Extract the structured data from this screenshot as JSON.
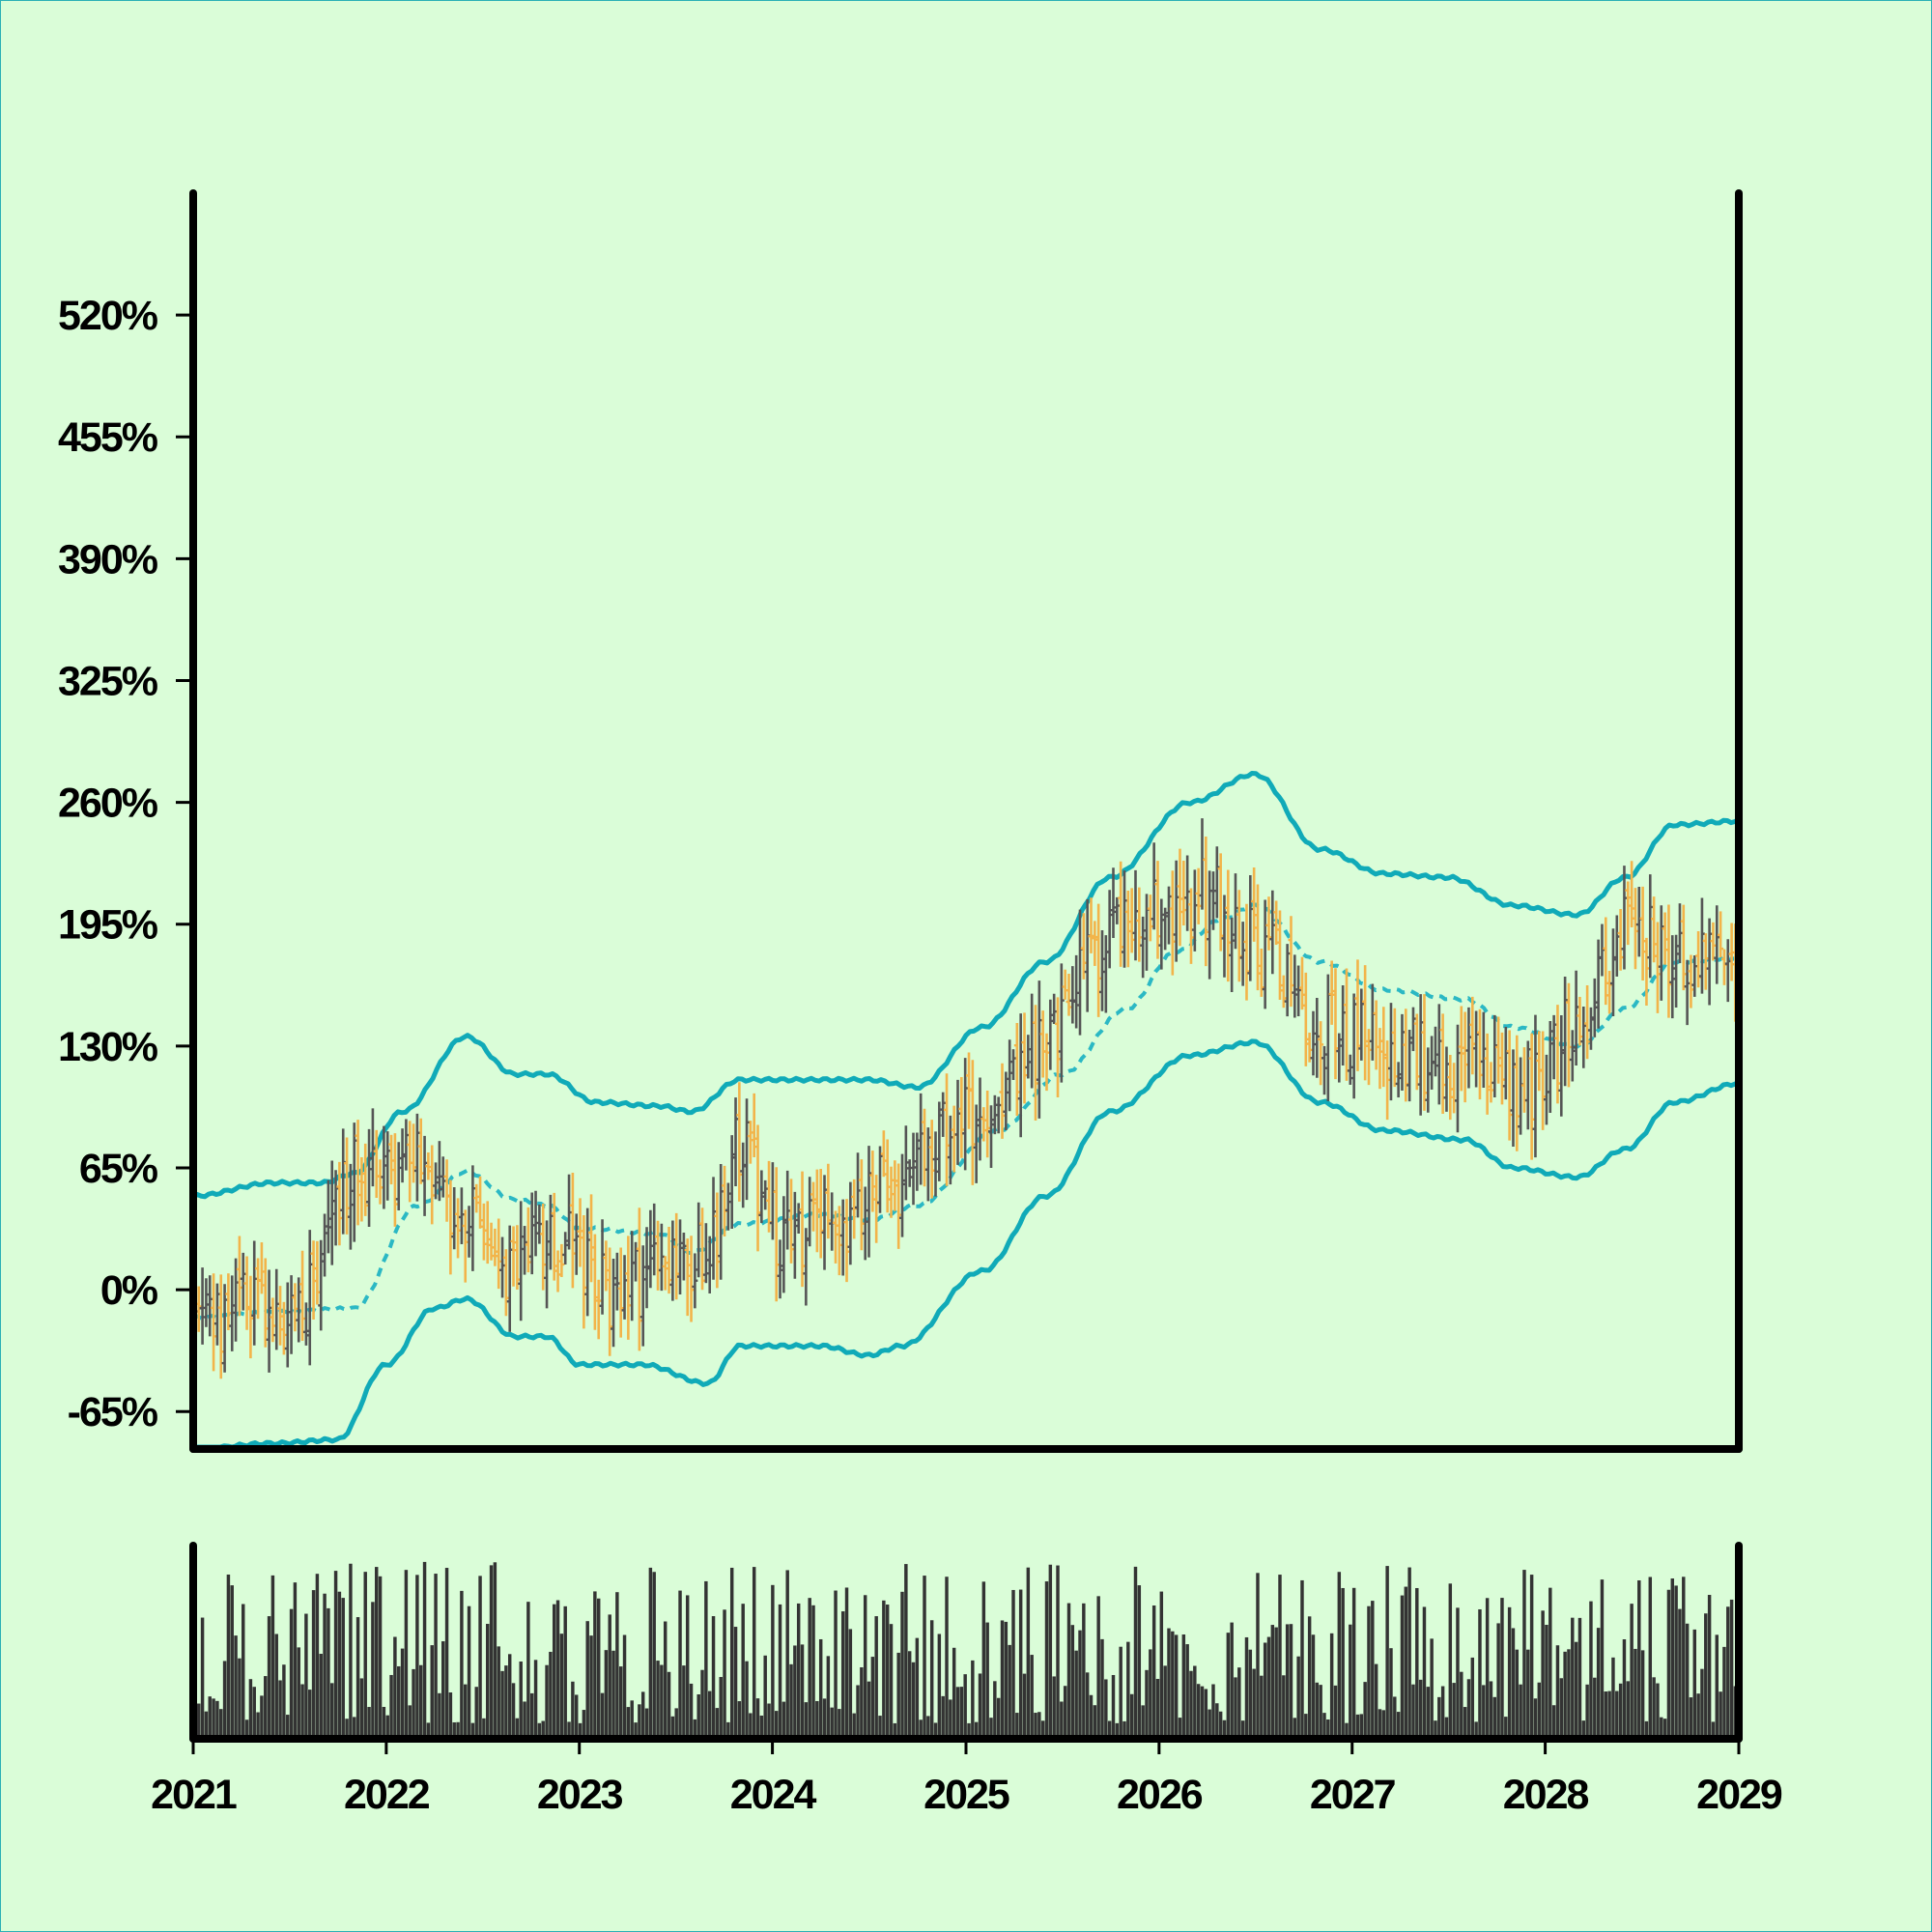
{
  "colors": {
    "background": "#dafdd8",
    "up_bar": "#555555",
    "down_bar": "#f2b44a",
    "band": "#10aab8",
    "mid_line": "#2bb8c4",
    "volume": "#333333",
    "axis": "#000000"
  },
  "chart_data": [
    {
      "type": "ohlc",
      "title": "",
      "xlabel": "",
      "ylabel": "",
      "xlim": [
        "2021-01-01",
        "2029-01-01"
      ],
      "ylim": [
        -85,
        585
      ],
      "y_ticks": [
        -65,
        0,
        65,
        130,
        195,
        260,
        325,
        390,
        455,
        520
      ],
      "y_tick_labels": [
        "-65%",
        "0%",
        "65%",
        "130%",
        "195%",
        "260%",
        "325%",
        "390%",
        "455%",
        "520%"
      ],
      "x_ticks": [
        "2021",
        "2022",
        "2023",
        "2024",
        "2025",
        "2026",
        "2027",
        "2028",
        "2029"
      ],
      "close_anchors": {
        "x": [
          "2021-01-01",
          "2021-04-01",
          "2021-07-01",
          "2021-11-01",
          "2022-03-01",
          "2022-06-01",
          "2022-08-01",
          "2022-11-01",
          "2023-03-01",
          "2023-06-01",
          "2023-09-01",
          "2023-11-01",
          "2024-02-01",
          "2024-05-01",
          "2024-08-01",
          "2025-01-01",
          "2025-06-01",
          "2025-09-01",
          "2026-01-01",
          "2026-04-01",
          "2026-08-01",
          "2026-11-01",
          "2027-03-01",
          "2027-08-01",
          "2027-12-01",
          "2028-03-01",
          "2028-06-01",
          "2028-10-01",
          "2029-01-01"
        ],
        "y": [
          -20,
          -10,
          -15,
          60,
          65,
          45,
          10,
          30,
          0,
          5,
          25,
          75,
          25,
          35,
          55,
          90,
          130,
          185,
          200,
          210,
          175,
          140,
          130,
          120,
          110,
          140,
          190,
          180,
          160
        ]
      },
      "bar_range_pct": [
        20,
        55
      ],
      "band": {
        "type": "bollinger",
        "mid_style": "dashed",
        "upper": {
          "x": [
            "2021-01-01",
            "2021-06-01",
            "2021-09-01",
            "2021-11-01",
            "2022-02-01",
            "2022-06-01",
            "2022-09-01",
            "2022-11-01",
            "2023-02-01",
            "2023-06-01",
            "2023-08-01",
            "2023-11-01",
            "2024-03-01",
            "2024-07-01",
            "2024-10-01",
            "2025-02-01",
            "2025-06-01",
            "2025-10-01",
            "2026-03-01",
            "2026-07-01",
            "2026-11-01",
            "2027-03-01",
            "2027-07-01",
            "2027-11-01",
            "2028-03-01",
            "2028-06-01",
            "2028-09-01",
            "2029-01-01"
          ],
          "y": [
            50,
            57,
            57,
            62,
            95,
            135,
            115,
            115,
            100,
            98,
            95,
            112,
            112,
            112,
            108,
            140,
            175,
            220,
            260,
            275,
            235,
            222,
            220,
            205,
            200,
            220,
            248,
            250
          ]
        },
        "mid": {
          "x": [
            "2021-01-01",
            "2021-06-01",
            "2021-11-01",
            "2022-03-01",
            "2022-06-01",
            "2022-09-01",
            "2022-11-01",
            "2023-01-01",
            "2023-06-01",
            "2023-08-01",
            "2023-11-01",
            "2024-04-01",
            "2024-07-01",
            "2024-10-01",
            "2025-03-01",
            "2025-07-01",
            "2025-11-01",
            "2026-02-01",
            "2026-05-01",
            "2026-07-01",
            "2026-11-01",
            "2027-03-01",
            "2027-08-01",
            "2027-11-01",
            "2028-03-01",
            "2028-06-01",
            "2028-09-01",
            "2029-01-01"
          ],
          "y": [
            -15,
            -12,
            -10,
            45,
            63,
            48,
            45,
            33,
            30,
            20,
            35,
            40,
            37,
            45,
            85,
            115,
            150,
            180,
            198,
            205,
            175,
            160,
            155,
            140,
            130,
            150,
            175,
            177
          ]
        },
        "lower": {
          "x": [
            "2021-01-01",
            "2021-06-01",
            "2021-10-01",
            "2022-01-01",
            "2022-04-01",
            "2022-06-01",
            "2022-09-01",
            "2022-11-01",
            "2023-01-01",
            "2023-05-01",
            "2023-09-01",
            "2023-11-01",
            "2024-04-01",
            "2024-07-01",
            "2024-09-01",
            "2025-02-01",
            "2025-06-01",
            "2025-10-01",
            "2026-03-01",
            "2026-07-01",
            "2026-11-01",
            "2027-03-01",
            "2027-08-01",
            "2027-11-01",
            "2028-03-01",
            "2028-06-01",
            "2028-09-01",
            "2029-01-01"
          ],
          "y": [
            -85,
            -82,
            -80,
            -40,
            -10,
            -5,
            -25,
            -25,
            -40,
            -40,
            -50,
            -30,
            -30,
            -35,
            -30,
            10,
            50,
            95,
            125,
            132,
            100,
            85,
            80,
            65,
            60,
            75,
            100,
            110
          ]
        }
      }
    },
    {
      "type": "bar",
      "title": "",
      "xlabel": "",
      "ylabel": "",
      "xlim": [
        "2021-01-01",
        "2029-01-01"
      ],
      "ylim": [
        0,
        100
      ],
      "grid": false,
      "volume_range": [
        8,
        92
      ]
    }
  ]
}
